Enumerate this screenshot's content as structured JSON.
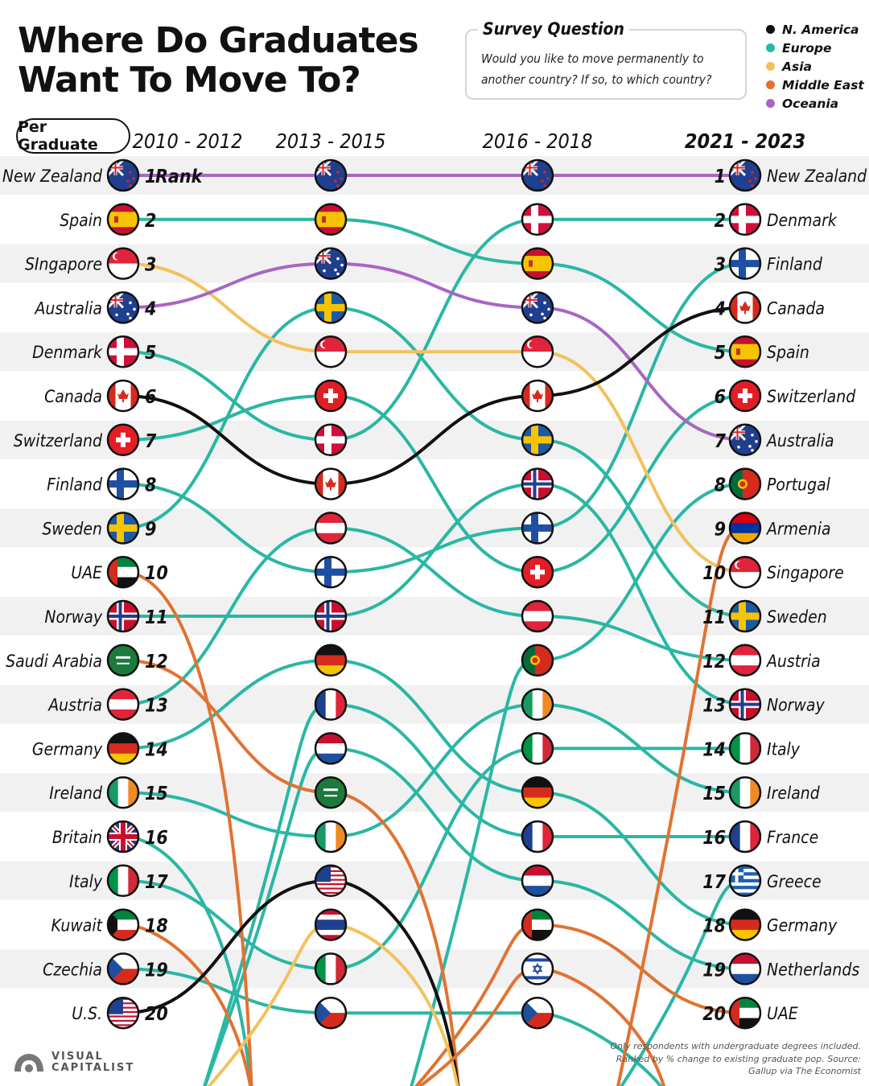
{
  "title": "Where Do Graduates Want To Move To?",
  "survey": {
    "heading": "Survey Question",
    "question": "Would you like to move permanently to another country? If so, to which country?"
  },
  "legend": [
    {
      "label": "N. America",
      "color": "#111111"
    },
    {
      "label": "Europe",
      "color": "#2ab7a3"
    },
    {
      "label": "Asia",
      "color": "#f3c15c"
    },
    {
      "label": "Middle East",
      "color": "#e07332"
    },
    {
      "label": "Oceania",
      "color": "#a866c4"
    }
  ],
  "per_graduate_label": "Per Graduate",
  "rank_label": "Rank",
  "footnote": "Only respondents with undergraduate degrees included. Ranked by % change to existing graduate pop. Source: Gallup via The Economist",
  "brand": [
    "VISUAL",
    "CAPITALIST"
  ],
  "chart_data": {
    "type": "bump",
    "periods": [
      "2010 - 2012",
      "2013 - 2015",
      "2016 - 2018",
      "2021 - 2023"
    ],
    "region_colors": {
      "N. America": "#111111",
      "Europe": "#2ab7a3",
      "Asia": "#f3c15c",
      "Middle East": "#e07332",
      "Oceania": "#a866c4"
    },
    "columns": [
      [
        "New Zealand",
        "Spain",
        "SIngapore",
        "Australia",
        "Denmark",
        "Canada",
        "Switzerland",
        "Finland",
        "Sweden",
        "UAE",
        "Norway",
        "Saudi Arabia",
        "Austria",
        "Germany",
        "Ireland",
        "Britain",
        "Italy",
        "Kuwait",
        "Czechia",
        "U.S."
      ],
      [
        "New Zealand",
        "Spain",
        "Australia",
        "Sweden",
        "Singapore",
        "Switzerland",
        "Denmark",
        "Canada",
        "Austria",
        "Finland",
        "Norway",
        "Germany",
        "France",
        "Netherlands",
        "Saudi Arabia",
        "Ireland",
        "U.S.",
        "Thailand",
        "Italy",
        "Czechia"
      ],
      [
        "New Zealand",
        "Denmark",
        "Spain",
        "Australia",
        "Singapore",
        "Canada",
        "Sweden",
        "Norway",
        "Finland",
        "Switzerland",
        "Austria",
        "Portugal",
        "Ireland",
        "Italy",
        "Germany",
        "France",
        "Netherlands",
        "UAE",
        "Israel",
        "Czechia"
      ],
      [
        "New Zealand",
        "Denmark",
        "Finland",
        "Canada",
        "Spain",
        "Switzerland",
        "Australia",
        "Portugal",
        "Armenia",
        "Singapore",
        "Sweden",
        "Austria",
        "Norway",
        "Italy",
        "Ireland",
        "France",
        "Greece",
        "Germany",
        "Netherlands",
        "UAE"
      ]
    ],
    "left_labels": [
      "New Zealand",
      "Spain",
      "SIngapore",
      "Australia",
      "Denmark",
      "Canada",
      "Switzerland",
      "Finland",
      "Sweden",
      "UAE",
      "Norway",
      "Saudi Arabia",
      "Austria",
      "Germany",
      "Ireland",
      "Britain",
      "Italy",
      "Kuwait",
      "Czechia",
      "U.S."
    ],
    "right_labels": [
      "New Zealand",
      "Denmark",
      "Finland",
      "Canada",
      "Spain",
      "Switzerland",
      "Australia",
      "Portugal",
      "Armenia",
      "Singapore",
      "Sweden",
      "Austria",
      "Norway",
      "Italy",
      "Ireland",
      "France",
      "Greece",
      "Germany",
      "Netherlands",
      "UAE"
    ],
    "ranks": [
      1,
      2,
      3,
      4,
      5,
      6,
      7,
      8,
      9,
      10,
      11,
      12,
      13,
      14,
      15,
      16,
      17,
      18,
      19,
      20
    ],
    "regions": {
      "New Zealand": "Oceania",
      "Australia": "Oceania",
      "Canada": "N. America",
      "U.S.": "N. America",
      "Singapore": "Asia",
      "Thailand": "Asia",
      "UAE": "Middle East",
      "Saudi Arabia": "Middle East",
      "Kuwait": "Middle East",
      "Israel": "Middle East",
      "Armenia": "Middle East",
      "Spain": "Europe",
      "Denmark": "Europe",
      "Switzerland": "Europe",
      "Finland": "Europe",
      "Sweden": "Europe",
      "Norway": "Europe",
      "Austria": "Europe",
      "Germany": "Europe",
      "Ireland": "Europe",
      "Britain": "Europe",
      "Italy": "Europe",
      "Czechia": "Europe",
      "France": "Europe",
      "Netherlands": "Europe",
      "Portugal": "Europe",
      "Greece": "Europe"
    }
  }
}
